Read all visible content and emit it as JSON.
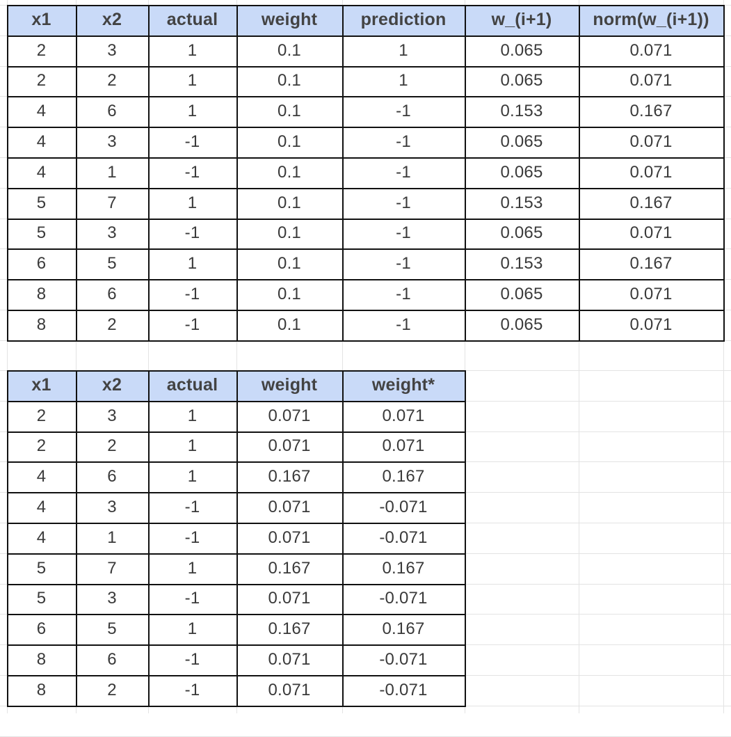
{
  "table_1": {
    "headers": [
      "x1",
      "x2",
      "actual",
      "weight",
      "prediction",
      "w_(i+1)",
      "norm(w_(i+1))"
    ],
    "rows": [
      [
        "2",
        "3",
        "1",
        "0.1",
        "1",
        "0.065",
        "0.071"
      ],
      [
        "2",
        "2",
        "1",
        "0.1",
        "1",
        "0.065",
        "0.071"
      ],
      [
        "4",
        "6",
        "1",
        "0.1",
        "-1",
        "0.153",
        "0.167"
      ],
      [
        "4",
        "3",
        "-1",
        "0.1",
        "-1",
        "0.065",
        "0.071"
      ],
      [
        "4",
        "1",
        "-1",
        "0.1",
        "-1",
        "0.065",
        "0.071"
      ],
      [
        "5",
        "7",
        "1",
        "0.1",
        "-1",
        "0.153",
        "0.167"
      ],
      [
        "5",
        "3",
        "-1",
        "0.1",
        "-1",
        "0.065",
        "0.071"
      ],
      [
        "6",
        "5",
        "1",
        "0.1",
        "-1",
        "0.153",
        "0.167"
      ],
      [
        "8",
        "6",
        "-1",
        "0.1",
        "-1",
        "0.065",
        "0.071"
      ],
      [
        "8",
        "2",
        "-1",
        "0.1",
        "-1",
        "0.065",
        "0.071"
      ]
    ]
  },
  "table_2": {
    "headers": [
      "x1",
      "x2",
      "actual",
      "weight",
      "weight*"
    ],
    "rows": [
      [
        "2",
        "3",
        "1",
        "0.071",
        "0.071"
      ],
      [
        "2",
        "2",
        "1",
        "0.071",
        "0.071"
      ],
      [
        "4",
        "6",
        "1",
        "0.167",
        "0.167"
      ],
      [
        "4",
        "3",
        "-1",
        "0.071",
        "-0.071"
      ],
      [
        "4",
        "1",
        "-1",
        "0.071",
        "-0.071"
      ],
      [
        "5",
        "7",
        "1",
        "0.167",
        "0.167"
      ],
      [
        "5",
        "3",
        "-1",
        "0.071",
        "-0.071"
      ],
      [
        "6",
        "5",
        "1",
        "0.167",
        "0.167"
      ],
      [
        "8",
        "6",
        "-1",
        "0.071",
        "-0.071"
      ],
      [
        "8",
        "2",
        "-1",
        "0.071",
        "-0.071"
      ]
    ]
  },
  "colors": {
    "header_fill": "#c9daf8",
    "grid_line": "#e3e3e3",
    "table_border": "#111111",
    "text": "#3a3a3a"
  }
}
